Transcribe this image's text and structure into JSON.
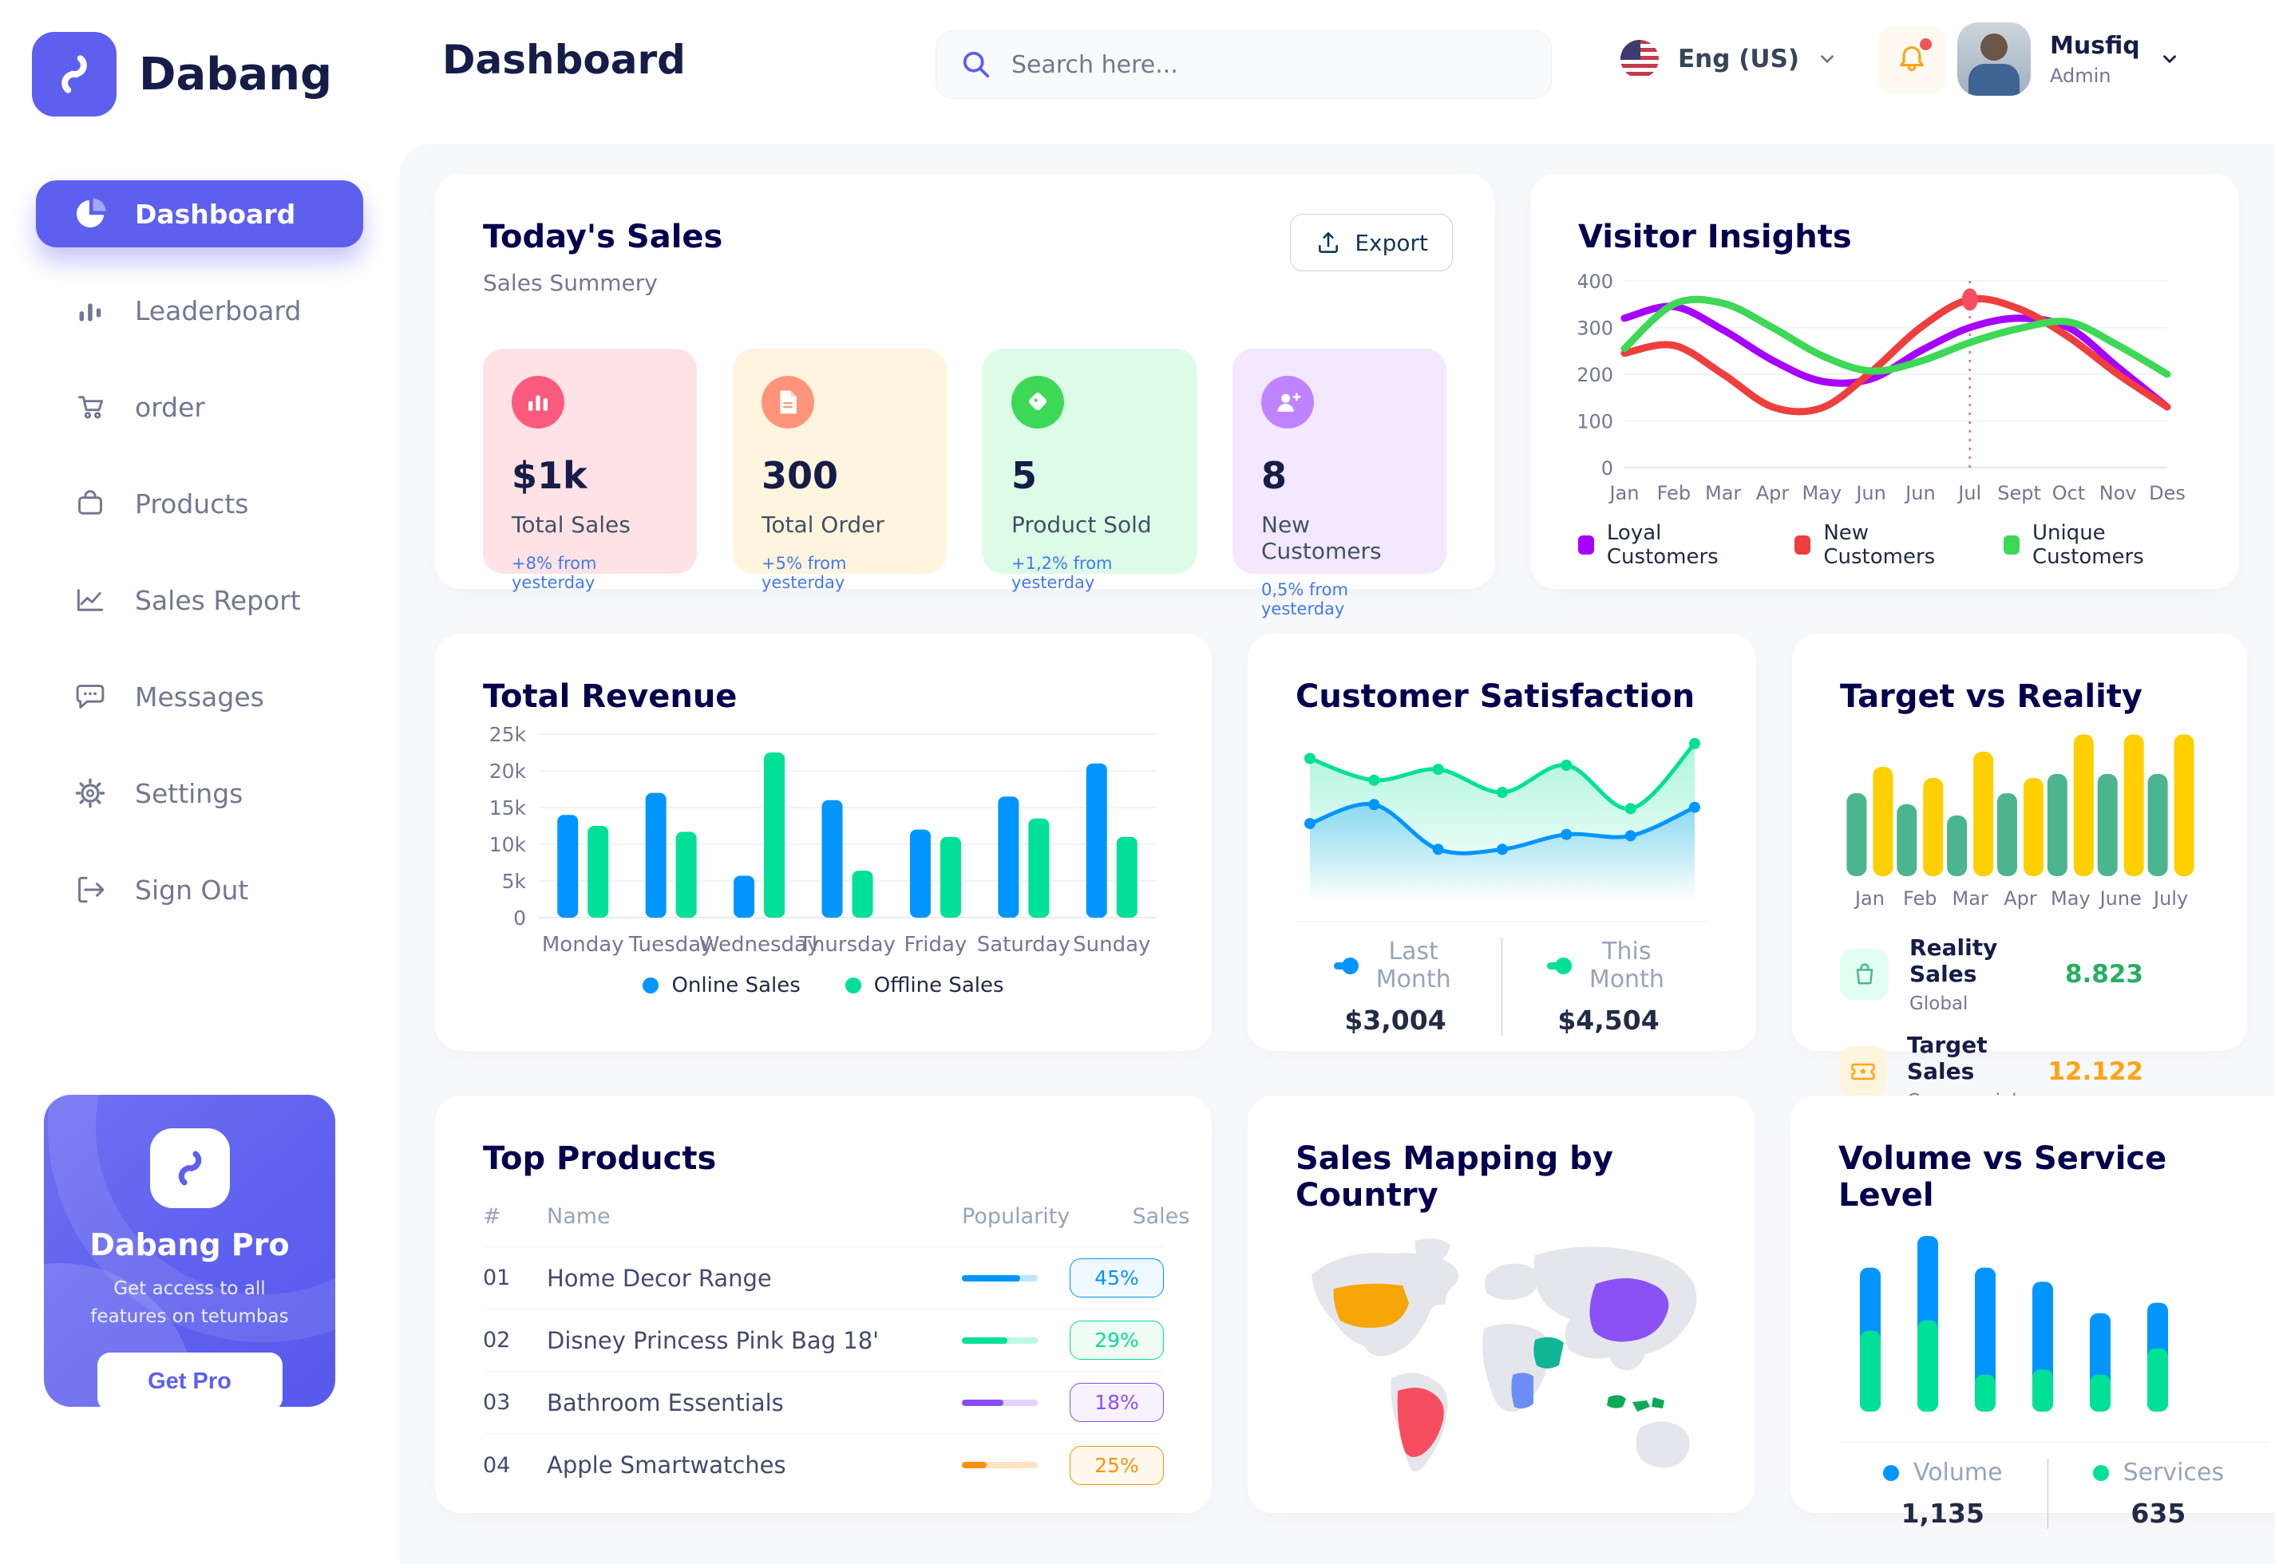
{
  "brand": {
    "name": "Dabang"
  },
  "header": {
    "title": "Dashboard",
    "search_placeholder": "Search here...",
    "language": "Eng (US)",
    "user_name": "Musfiq",
    "user_role": "Admin"
  },
  "sidebar": {
    "items": [
      {
        "label": "Dashboard",
        "icon": "pie-chart-icon",
        "active": true
      },
      {
        "label": "Leaderboard",
        "icon": "bar-chart-icon",
        "active": false
      },
      {
        "label": "order",
        "icon": "cart-icon",
        "active": false
      },
      {
        "label": "Products",
        "icon": "bag-icon",
        "active": false
      },
      {
        "label": "Sales Report",
        "icon": "line-chart-icon",
        "active": false
      },
      {
        "label": "Messages",
        "icon": "message-icon",
        "active": false
      },
      {
        "label": "Settings",
        "icon": "gear-icon",
        "active": false
      },
      {
        "label": "Sign Out",
        "icon": "sign-out-icon",
        "active": false
      }
    ],
    "promo": {
      "title": "Dabang Pro",
      "subtitle": "Get access to all features on tetumbas",
      "button_label": "Get Pro"
    }
  },
  "today_sales": {
    "title": "Today's Sales",
    "subtitle": "Sales Summery",
    "export_label": "Export",
    "cards": [
      {
        "value": "$1k",
        "label": "Total Sales",
        "delta": "+8% from yesterday",
        "bg": "#FFE2E5",
        "icon_bg": "#FA5A7D",
        "icon": "chart-bars-icon"
      },
      {
        "value": "300",
        "label": "Total Order",
        "delta": "+5% from yesterday",
        "bg": "#FFF4DE",
        "icon_bg": "#FF947A",
        "icon": "file-icon"
      },
      {
        "value": "5",
        "label": "Product Sold",
        "delta": "+1,2% from yesterday",
        "bg": "#DCFCE7",
        "icon_bg": "#3CD856",
        "icon": "tag-icon"
      },
      {
        "value": "8",
        "label": "New Customers",
        "delta": "0,5% from yesterday",
        "bg": "#F3E8FF",
        "icon_bg": "#BF83FF",
        "icon": "user-plus-icon"
      }
    ]
  },
  "chart_data": {
    "visitor_insights": {
      "type": "line",
      "title": "Visitor Insights",
      "x": [
        "Jan",
        "Feb",
        "Mar",
        "Apr",
        "May",
        "Jun",
        "Jun",
        "Jul",
        "Sept",
        "Oct",
        "Nov",
        "Des"
      ],
      "yticks": [
        0,
        100,
        200,
        300,
        400
      ],
      "ylim": [
        0,
        400
      ],
      "series": [
        {
          "name": "Loyal Customers",
          "color": "#A700FF",
          "values": [
            320,
            345,
            295,
            230,
            185,
            190,
            250,
            300,
            320,
            300,
            215,
            130
          ]
        },
        {
          "name": "New Customers",
          "color": "#EF3E3E",
          "values": [
            245,
            262,
            200,
            130,
            128,
            205,
            300,
            360,
            340,
            280,
            200,
            130
          ]
        },
        {
          "name": "Unique Customers",
          "color": "#3CD856",
          "values": [
            255,
            350,
            352,
            300,
            240,
            207,
            228,
            268,
            298,
            312,
            262,
            200
          ]
        }
      ],
      "marker": {
        "series_index": 1,
        "x_index": 7,
        "value": 360
      }
    },
    "total_revenue": {
      "type": "bar",
      "title": "Total Revenue",
      "categories": [
        "Monday",
        "Tuesday",
        "Wednesday",
        "Thursday",
        "Friday",
        "Saturday",
        "Sunday"
      ],
      "yticks": [
        "0",
        "5k",
        "10k",
        "15k",
        "20k",
        "25k"
      ],
      "ylim": [
        0,
        25
      ],
      "series": [
        {
          "name": "Online Sales",
          "color": "#0095FF",
          "values": [
            14,
            17,
            5.7,
            16,
            12,
            16.5,
            21
          ]
        },
        {
          "name": "Offline Sales",
          "color": "#00E096",
          "values": [
            12.5,
            11.7,
            22.5,
            6.4,
            11,
            13.5,
            11
          ]
        }
      ]
    },
    "customer_satisfaction": {
      "type": "area",
      "title": "Customer Satisfaction",
      "ylim": [
        0,
        100
      ],
      "series": [
        {
          "name": "Last Month",
          "total": "$3,004",
          "color": "#0095FF",
          "values": [
            37,
            51,
            18,
            18,
            29,
            28,
            49
          ]
        },
        {
          "name": "This Month",
          "total": "$4,504",
          "color": "#00E096",
          "values": [
            85,
            69,
            77,
            60,
            80,
            48,
            96
          ]
        }
      ]
    },
    "target_vs_reality": {
      "type": "bar",
      "title": "Target vs Reality",
      "categories": [
        "Jan",
        "Feb",
        "Mar",
        "Apr",
        "May",
        "June",
        "July"
      ],
      "ylim": [
        0,
        14.5
      ],
      "series": [
        {
          "name": "Reality Sales",
          "note": "Global",
          "total": "8.823",
          "color": "#4AB58E",
          "value_color": "#27AE60",
          "icon_bg": "#E2FFF3",
          "icon": "shopping-bag-icon",
          "values": [
            8.2,
            7.1,
            6,
            8.2,
            10.1,
            10.1,
            10.1
          ]
        },
        {
          "name": "Target Sales",
          "note": "Commercial",
          "total": "12.122",
          "color": "#FFCF00",
          "value_color": "#FFA412",
          "icon_bg": "#FFF4DE",
          "icon": "ticket-icon",
          "values": [
            10.8,
            9.7,
            12.3,
            9.7,
            14,
            14,
            14
          ]
        }
      ]
    },
    "volume_service": {
      "type": "stacked-bar",
      "title": "Volume vs Service Level",
      "series": [
        {
          "name": "Volume",
          "total": "1,135",
          "color": "#0095FF",
          "values": [
            36,
            48,
            61,
            50,
            35,
            26
          ]
        },
        {
          "name": "Services",
          "total": "635",
          "color": "#00E096",
          "values": [
            46,
            52,
            21,
            24,
            21,
            36
          ]
        }
      ]
    }
  },
  "top_products": {
    "title": "Top Products",
    "headers": [
      "#",
      "Name",
      "Popularity",
      "Sales"
    ],
    "rows": [
      {
        "num": "01",
        "name": "Home Decor Range",
        "popularity": 77,
        "sales": "45%",
        "color": "#0095FF",
        "badge_bg": "#F0F9FF"
      },
      {
        "num": "02",
        "name": "Disney Princess Pink Bag 18'",
        "popularity": 60,
        "sales": "29%",
        "color": "#00E096",
        "badge_bg": "#F0FDF4"
      },
      {
        "num": "03",
        "name": "Bathroom Essentials",
        "popularity": 55,
        "sales": "18%",
        "color": "#884DFF",
        "badge_bg": "#F8F2FF"
      },
      {
        "num": "04",
        "name": "Apple Smartwatches",
        "popularity": 33,
        "sales": "25%",
        "color": "#FF8F0D",
        "badge_bg": "#FFF8EC"
      }
    ]
  },
  "sales_mapping": {
    "title": "Sales Mapping by Country",
    "countries": [
      {
        "name": "United States",
        "color": "#F6A609"
      },
      {
        "name": "Brazil",
        "color": "#F64E60"
      },
      {
        "name": "DR Congo",
        "color": "#6D8DF6"
      },
      {
        "name": "Saudi Arabia",
        "color": "#10B596"
      },
      {
        "name": "China",
        "color": "#8B51F5"
      },
      {
        "name": "Indonesia",
        "color": "#0FA958"
      }
    ]
  }
}
